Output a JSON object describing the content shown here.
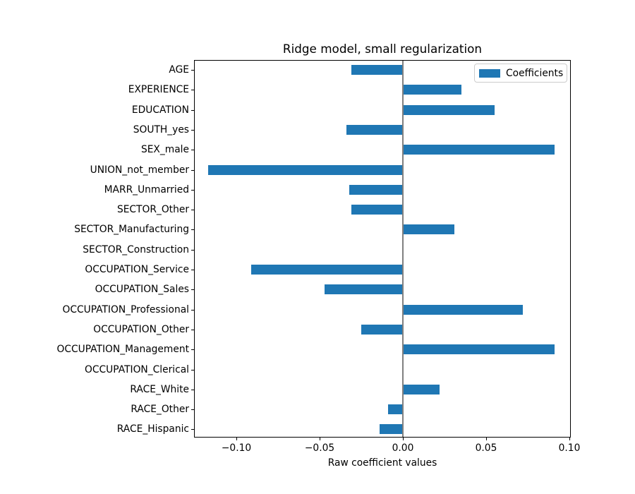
{
  "chart_data": {
    "type": "bar",
    "orientation": "horizontal",
    "title": "Ridge model, small regularization",
    "xlabel": "Raw coefficient values",
    "ylabel": "",
    "legend": [
      "Coefficients"
    ],
    "legend_position": "upper right",
    "grid": false,
    "categories": [
      "AGE",
      "EXPERIENCE",
      "EDUCATION",
      "SOUTH_yes",
      "SEX_male",
      "UNION_not_member",
      "MARR_Unmarried",
      "SECTOR_Other",
      "SECTOR_Manufacturing",
      "SECTOR_Construction",
      "OCCUPATION_Service",
      "OCCUPATION_Sales",
      "OCCUPATION_Professional",
      "OCCUPATION_Other",
      "OCCUPATION_Management",
      "OCCUPATION_Clerical",
      "RACE_White",
      "RACE_Other",
      "RACE_Hispanic"
    ],
    "values": [
      -0.031,
      0.035,
      0.055,
      -0.034,
      0.091,
      -0.117,
      -0.032,
      -0.031,
      0.031,
      0.0,
      -0.091,
      -0.047,
      0.072,
      -0.025,
      0.091,
      0.0,
      0.022,
      -0.009,
      -0.014
    ],
    "xlim": [
      -0.1253,
      0.1007
    ],
    "xticks": [
      -0.1,
      -0.05,
      0.0,
      0.05,
      0.1
    ],
    "xtick_labels": [
      "−0.10",
      "−0.05",
      "0.00",
      "0.05",
      "0.10"
    ],
    "zero_line": 0.0
  },
  "colors": {
    "bar": "#1f77b4",
    "zero_line": "#808080",
    "spine": "#000000",
    "legend_border": "#cccccc",
    "background": "#ffffff",
    "text": "#000000"
  }
}
